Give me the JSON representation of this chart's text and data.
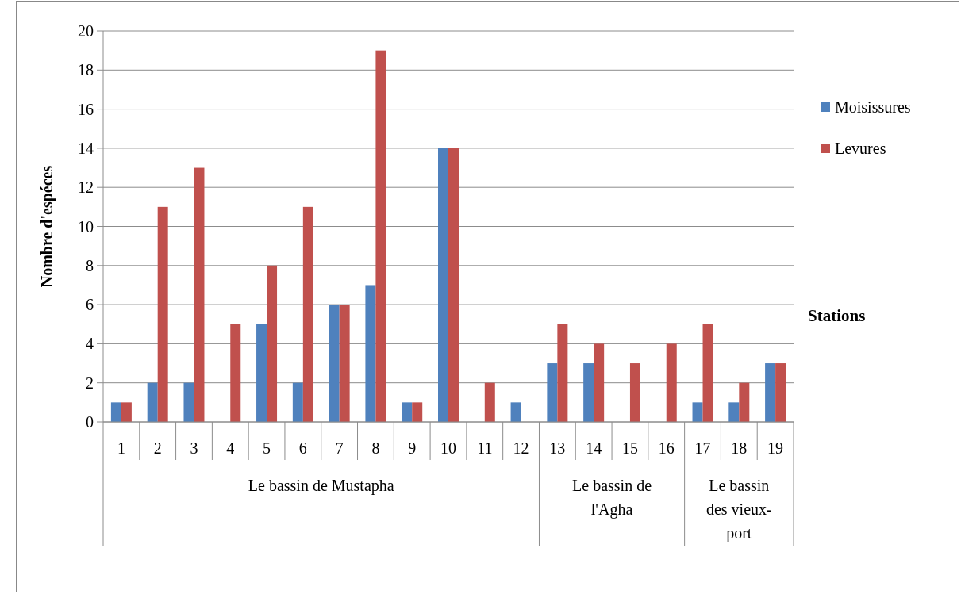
{
  "chart_data": {
    "type": "bar",
    "xlabel": "Stations",
    "ylabel": "Nombre d'espéces",
    "categories": [
      "1",
      "2",
      "3",
      "4",
      "5",
      "6",
      "7",
      "8",
      "9",
      "10",
      "11",
      "12",
      "13",
      "14",
      "15",
      "16",
      "17",
      "18",
      "19"
    ],
    "series": [
      {
        "name": "Moisissures",
        "color": "#4f81bd",
        "values": [
          1,
          2,
          2,
          0,
          5,
          2,
          6,
          7,
          1,
          14,
          0,
          1,
          3,
          3,
          0,
          0,
          1,
          1,
          3
        ]
      },
      {
        "name": "Levures",
        "color": "#c0504d",
        "values": [
          1,
          11,
          13,
          5,
          8,
          11,
          6,
          19,
          1,
          14,
          2,
          0,
          5,
          4,
          3,
          4,
          5,
          2,
          3
        ]
      }
    ],
    "ylim": [
      0,
      20
    ],
    "yticks": [
      0,
      2,
      4,
      6,
      8,
      10,
      12,
      14,
      16,
      18,
      20
    ],
    "grid": "y",
    "legend": "right",
    "annotations": [
      "Le bassin de Mustapha",
      "Le bassin de l'Agha",
      "Le bassin des vieux-port"
    ]
  }
}
